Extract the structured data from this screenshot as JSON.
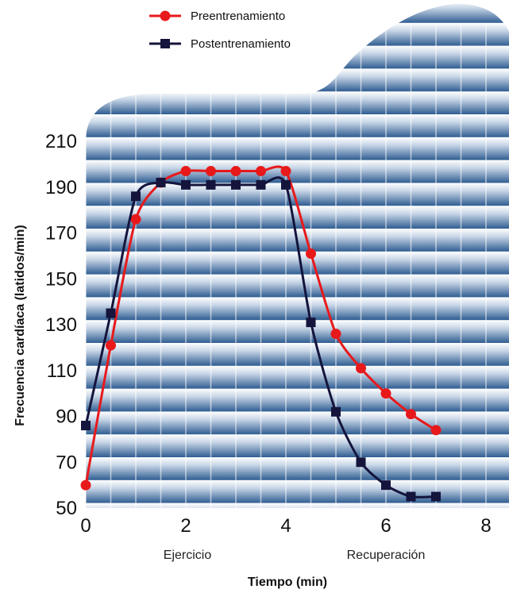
{
  "chart_data": {
    "type": "line",
    "xlabel": "Tiempo (min)",
    "ylabel": "Frecuencia cardíaca (latidos/min)",
    "xlim": [
      0,
      8
    ],
    "ylim": [
      50,
      215
    ],
    "x_ticks": [
      "0",
      "2",
      "4",
      "6",
      "8"
    ],
    "y_ticks": [
      "50",
      "70",
      "90",
      "110",
      "130",
      "150",
      "170",
      "190",
      "210"
    ],
    "phase_labels": [
      "Ejercicio",
      "Recuperación"
    ],
    "grid": true,
    "legend_position": "top",
    "series": [
      {
        "name": "Preentrenamiento",
        "color": "#e8191b",
        "marker": "circle",
        "x": [
          0,
          0.5,
          1,
          1.5,
          2,
          2.5,
          3,
          3.5,
          4,
          4.5,
          5,
          5.5,
          6,
          6.5,
          7
        ],
        "y": [
          60,
          121,
          176,
          192,
          197,
          197,
          197,
          197,
          197,
          161,
          126,
          111,
          100,
          91,
          84
        ]
      },
      {
        "name": "Postentrenamiento",
        "color": "#14143c",
        "marker": "square",
        "x": [
          0,
          0.5,
          1,
          1.5,
          2,
          2.5,
          3,
          3.5,
          4,
          4.5,
          5,
          5.5,
          6,
          6.5,
          7
        ],
        "y": [
          86,
          135,
          186,
          192,
          191,
          191,
          191,
          191,
          191,
          131,
          92,
          70,
          60,
          55,
          55
        ]
      }
    ]
  }
}
